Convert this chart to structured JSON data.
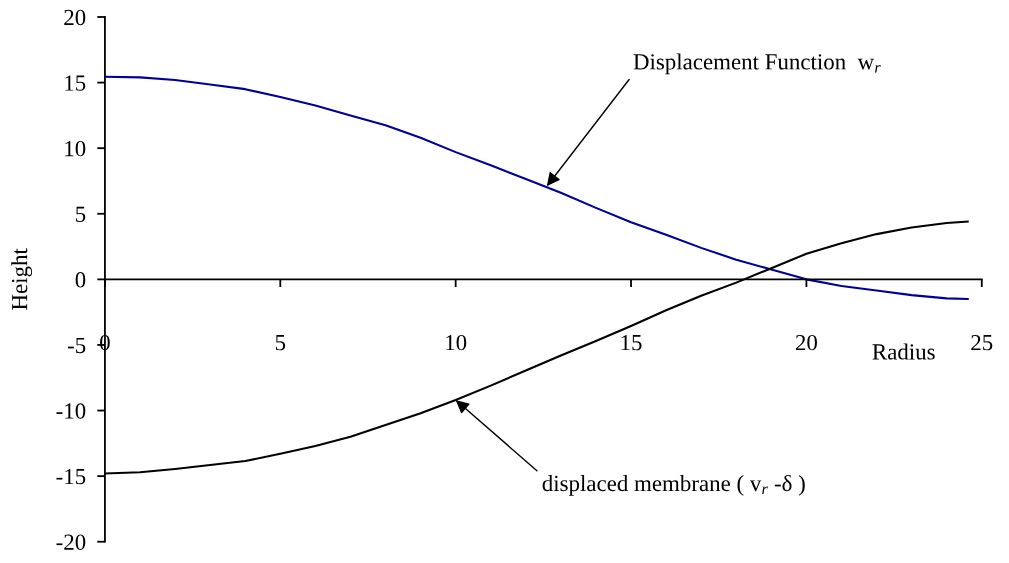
{
  "chart_data": {
    "type": "line",
    "xlabel": "Radius",
    "ylabel": "Height",
    "x": [
      0,
      1,
      2,
      3,
      4,
      5,
      6,
      7,
      8,
      9,
      10,
      11,
      12,
      13,
      14,
      15,
      16,
      17,
      18,
      19,
      20,
      21,
      22,
      23,
      24,
      24.6
    ],
    "series": [
      {
        "color": "#000099",
        "values": [
          15.45,
          15.4,
          15.2,
          14.85,
          14.5,
          13.9,
          13.25,
          12.5,
          11.75,
          10.8,
          9.7,
          8.7,
          7.65,
          6.6,
          5.45,
          4.35,
          3.4,
          2.4,
          1.5,
          0.75,
          0.0,
          -0.5,
          -0.85,
          -1.2,
          -1.45,
          -1.5
        ]
      },
      {
        "color": "#000000",
        "values": [
          -14.8,
          -14.7,
          -14.45,
          -14.15,
          -13.85,
          -13.3,
          -12.7,
          -12.0,
          -11.1,
          -10.2,
          -9.2,
          -8.1,
          -6.95,
          -5.8,
          -4.7,
          -3.55,
          -2.35,
          -1.25,
          -0.25,
          0.85,
          1.95,
          2.75,
          3.45,
          3.95,
          4.3,
          4.4
        ]
      }
    ],
    "xlim": [
      0,
      25
    ],
    "ylim": [
      -20,
      20
    ],
    "xticks": [
      0,
      5,
      10,
      15,
      20,
      25
    ],
    "yticks": [
      -20,
      -15,
      -10,
      -5,
      0,
      5,
      10,
      15,
      20
    ],
    "line_style": "solid",
    "annotations": [
      {
        "text": "Displacement Function  w$_{r}$",
        "x": 12.6,
        "y": 7.1
      },
      {
        "text": "displaced membrane ( v$_{r}$ -δ )",
        "x": 10,
        "y": -9.2
      }
    ]
  }
}
